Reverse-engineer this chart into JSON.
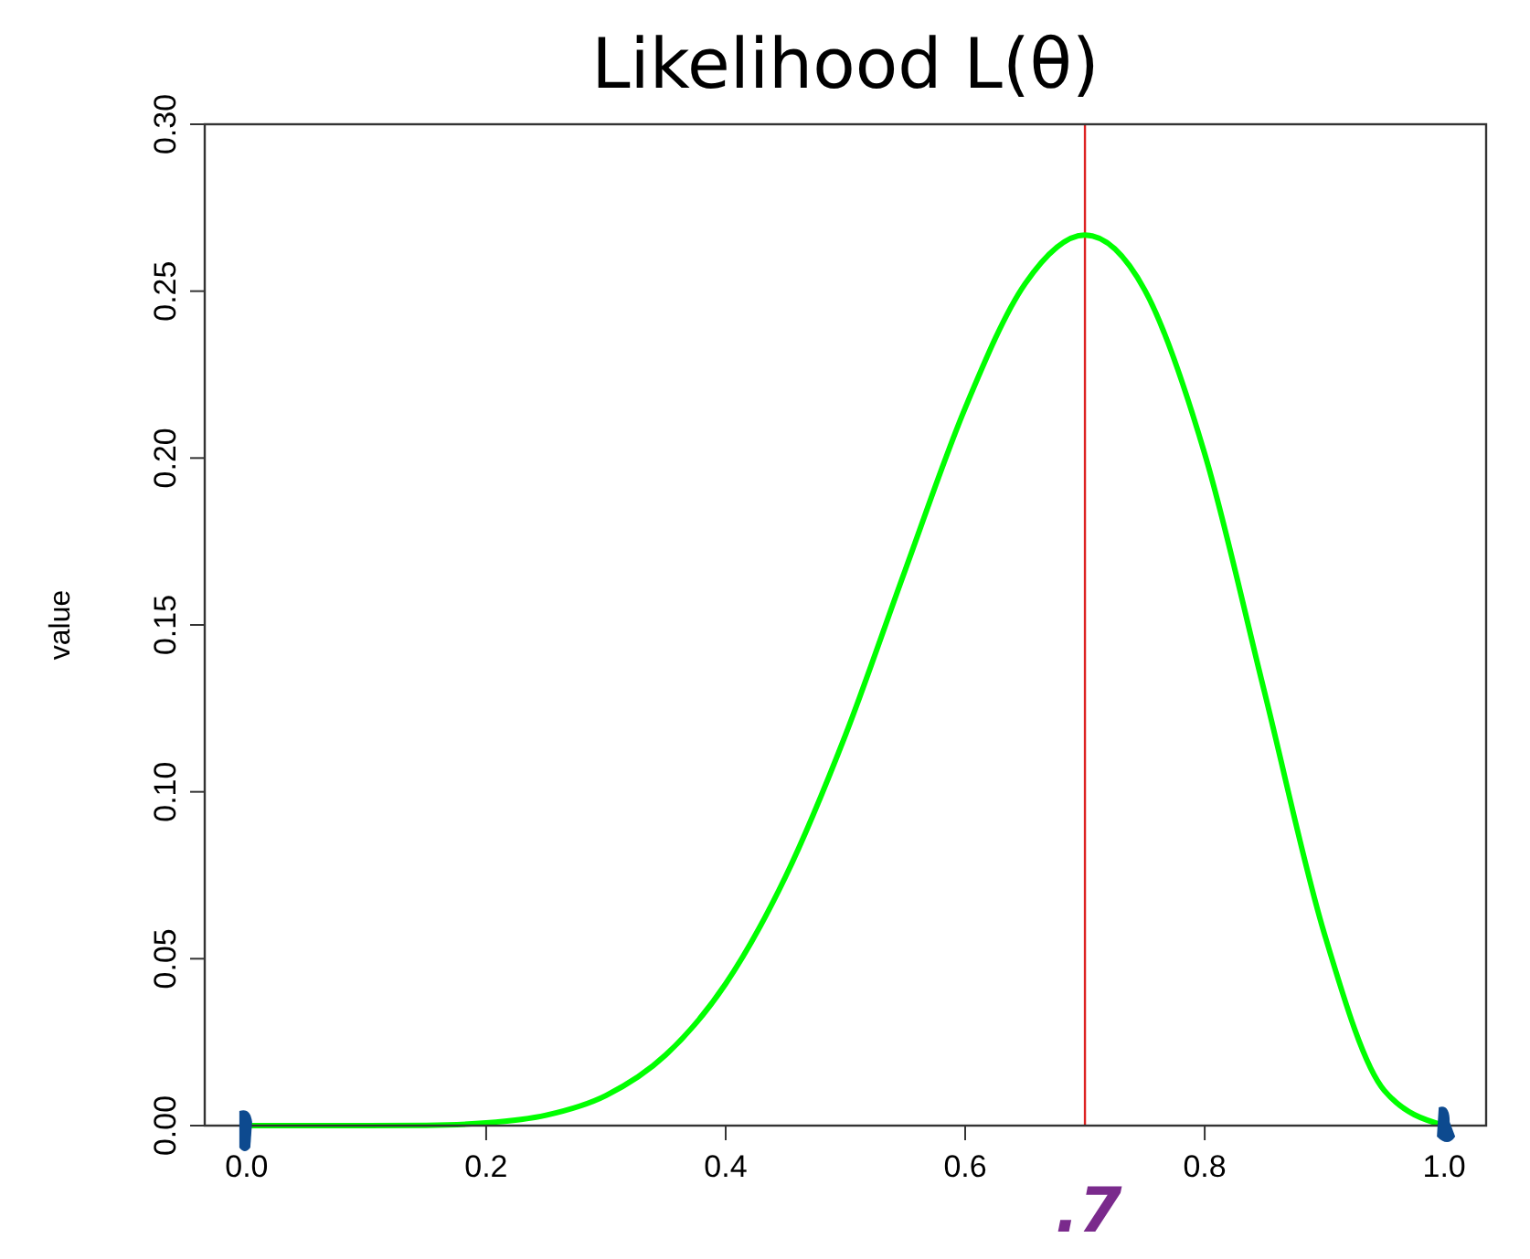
{
  "chart_data": {
    "type": "line",
    "title": "Likelihood L(θ)",
    "ylabel": "value",
    "x": [
      0,
      0.05,
      0.1,
      0.15,
      0.2,
      0.25,
      0.3,
      0.35,
      0.4,
      0.45,
      0.5,
      0.55,
      0.6,
      0.65,
      0.7,
      0.75,
      0.8,
      0.85,
      0.9,
      0.95,
      1
    ],
    "series": [
      {
        "color": "#00ff00",
        "values": [
          0,
          0,
          0,
          0.0001,
          0.0008,
          0.0031,
          0.009,
          0.0212,
          0.0425,
          0.0746,
          0.117,
          0.1665,
          0.215,
          0.2522,
          0.2668,
          0.2503,
          0.2013,
          0.1298,
          0.0574,
          0.0105,
          0
        ]
      }
    ],
    "xlim": [
      -0.035,
      1.035
    ],
    "xticks": [
      {
        "value": 0,
        "label": "0.0"
      },
      0.2,
      0.4,
      0.6,
      0.8,
      {
        "value": 1,
        "label": "1.0"
      }
    ],
    "ylim": [
      0,
      0.3
    ],
    "yticks": [
      {
        "value": 0,
        "label": "0.00"
      },
      0.05,
      {
        "value": 0.1,
        "label": "0.10"
      },
      0.15,
      {
        "value": 0.2,
        "label": "0.20"
      },
      0.25,
      {
        "value": 0.3,
        "label": "0.30"
      }
    ],
    "ref_lines": [
      {
        "axis": "x",
        "value": 0.7,
        "color": "#dd2222"
      }
    ],
    "annotations": [
      ".7"
    ],
    "grid": false
  }
}
